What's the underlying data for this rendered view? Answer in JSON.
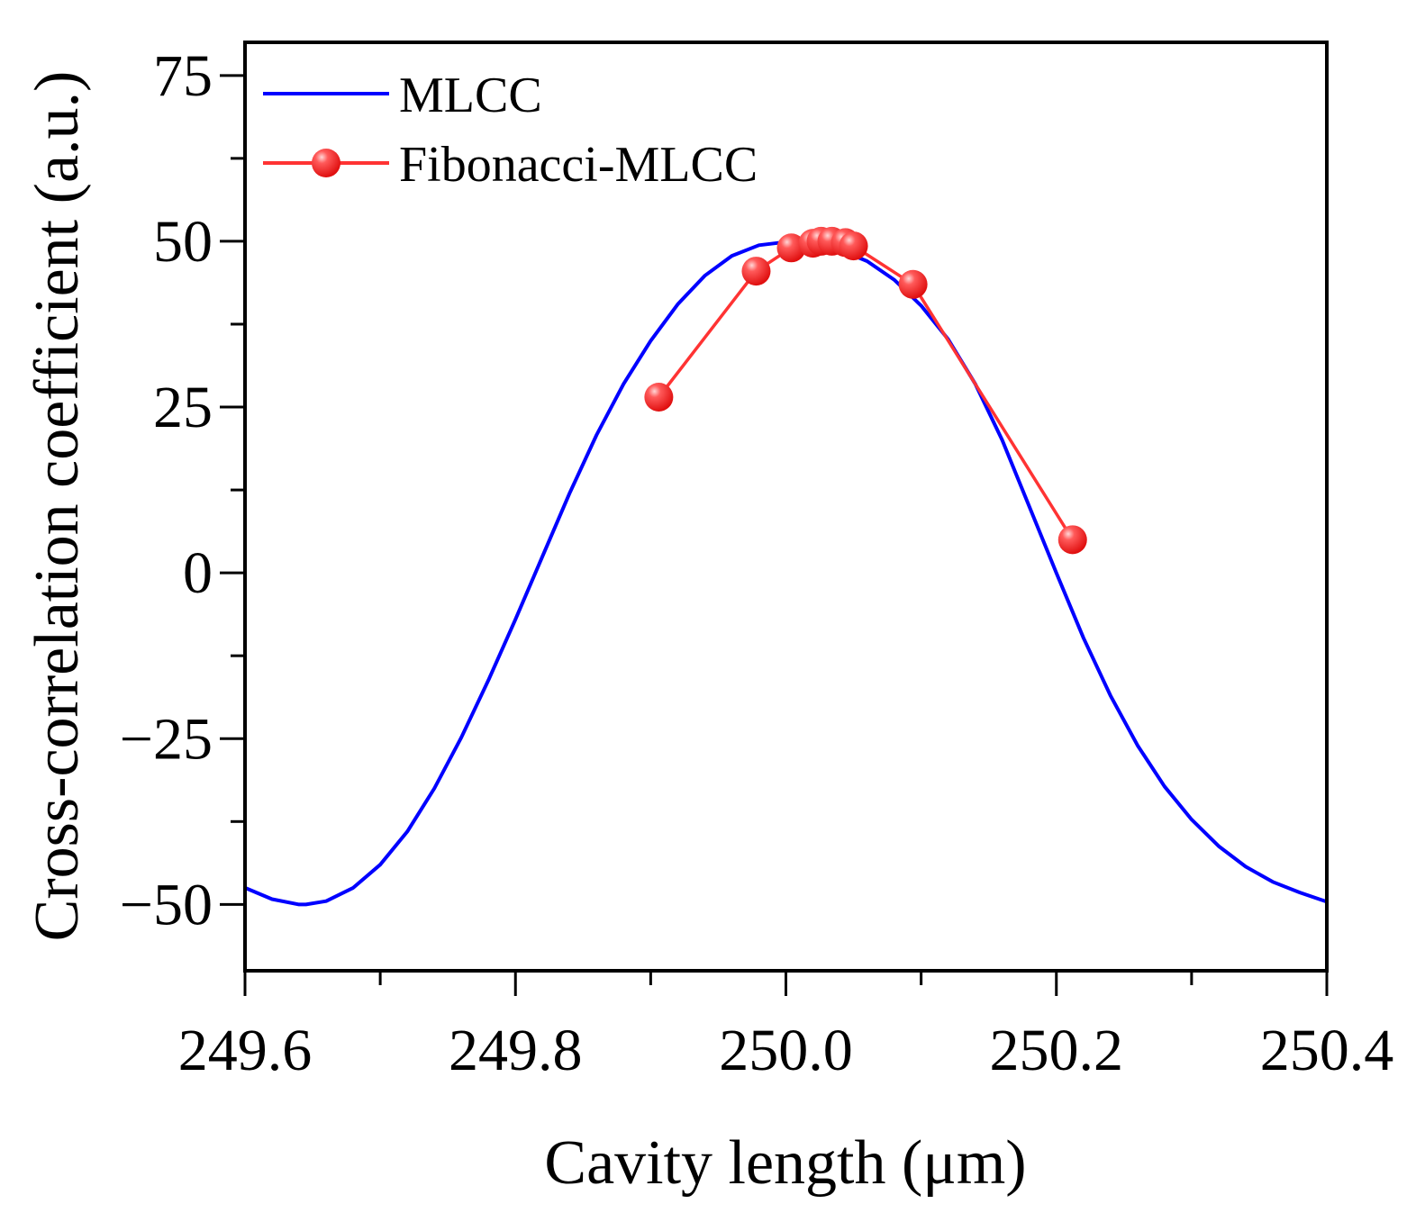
{
  "chart_data": {
    "type": "line",
    "title": "",
    "xlabel": "Cavity length (μm)",
    "ylabel": "Cross-correlation coefficient (a.u.)",
    "xlim": [
      249.6,
      250.4
    ],
    "ylim": [
      -60,
      80
    ],
    "x_ticks": [
      249.6,
      249.8,
      250.0,
      250.2,
      250.4
    ],
    "x_tick_labels": [
      "249.6",
      "249.8",
      "250.0",
      "250.2",
      "250.4"
    ],
    "y_ticks": [
      -50,
      -25,
      0,
      25,
      50,
      75
    ],
    "y_tick_labels": [
      "−50",
      "−25",
      "0",
      "25",
      "50",
      "75"
    ],
    "grid": false,
    "legend_position": "top-left",
    "series": [
      {
        "name": "MLCC",
        "color": "#0000ff",
        "marker": "none",
        "x": [
          249.6,
          249.62,
          249.64,
          249.645,
          249.66,
          249.68,
          249.7,
          249.72,
          249.74,
          249.76,
          249.78,
          249.8,
          249.82,
          249.84,
          249.86,
          249.88,
          249.9,
          249.92,
          249.94,
          249.96,
          249.98,
          250.0,
          250.02,
          250.03,
          250.04,
          250.06,
          250.08,
          250.1,
          250.12,
          250.14,
          250.16,
          250.18,
          250.2,
          250.22,
          250.24,
          250.26,
          250.28,
          250.3,
          250.32,
          250.34,
          250.36,
          250.38,
          250.4
        ],
        "y": [
          -47.5,
          -49.2,
          -50.0,
          -50.0,
          -49.5,
          -47.5,
          -44.0,
          -39.0,
          -32.5,
          -24.8,
          -16.2,
          -7.0,
          2.5,
          12.0,
          20.8,
          28.5,
          35.0,
          40.5,
          44.8,
          47.8,
          49.4,
          49.9,
          49.6,
          49.2,
          48.7,
          47.0,
          44.2,
          40.3,
          35.2,
          28.5,
          20.0,
          10.0,
          0.0,
          -9.8,
          -18.5,
          -26.0,
          -32.2,
          -37.2,
          -41.2,
          -44.3,
          -46.6,
          -48.2,
          -49.6
        ]
      },
      {
        "name": "Fibonacci-MLCC",
        "color": "#ff3333",
        "marker": "circle",
        "x": [
          249.906,
          249.978,
          250.004,
          250.02,
          250.026,
          250.034,
          250.044,
          250.05,
          250.094,
          250.212
        ],
        "y": [
          26.5,
          45.5,
          49.0,
          49.7,
          50.0,
          50.0,
          49.8,
          49.3,
          43.5,
          5.0
        ]
      }
    ]
  }
}
